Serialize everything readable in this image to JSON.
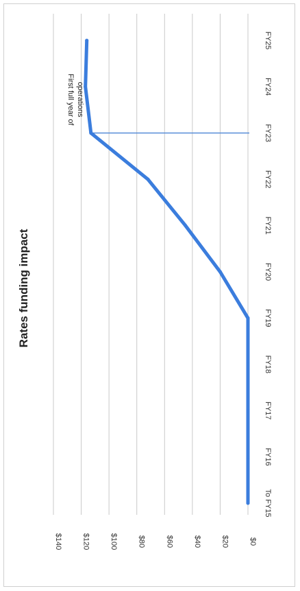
{
  "chart_data": {
    "type": "line",
    "title": "Rates funding impact",
    "categories": [
      "To FY15",
      "FY16",
      "FY17",
      "FY18",
      "FY19",
      "FY20",
      "FY21",
      "FY22",
      "FY23",
      "FY24",
      "FY25"
    ],
    "series": [
      {
        "values": [
          0,
          0,
          0,
          0,
          0,
          20,
          45,
          72,
          113,
          117,
          116
        ]
      }
    ],
    "ylim": [
      0,
      140
    ],
    "y_ticks": [
      "$0",
      "$20",
      "$40",
      "$60",
      "$80",
      "$100",
      "$120",
      "$140"
    ],
    "grid": true,
    "orientation": "rotated 90 degrees clockwise (x axis runs top to bottom)",
    "colors": {
      "line": "#3b7ddd",
      "marker_line": "#5b8fd8",
      "grid": "#c8c8c8"
    },
    "annotation": {
      "category": "FY23",
      "lines": [
        "First full year of",
        "operations"
      ]
    }
  }
}
